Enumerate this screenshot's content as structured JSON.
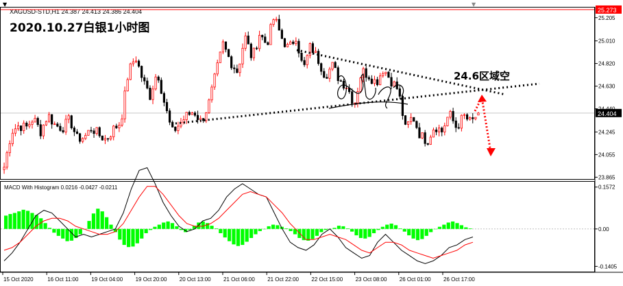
{
  "header": {
    "dropdown_glyph": "▼",
    "symbol_info": "XAGUSD-STD,H1  24.387 24.413 24.386 24.404",
    "corner_glyph": "▼"
  },
  "annotation": {
    "title": "2020.10.27白银1小时图",
    "zone_label": "24.6区域空"
  },
  "colors": {
    "up_candle": "#ff0000",
    "down_candle": "#000000",
    "price_marker": "#ff0000",
    "ask_line": "#ff0000",
    "histogram": "#00ff00",
    "macd_line": "#000000",
    "signal_line": "#ff0000",
    "arrow": "#ff0000"
  },
  "chart_data": [
    {
      "type": "candlestick",
      "symbol": "XAGUSD-STD",
      "timeframe": "H1",
      "ohlc_now": {
        "open": 24.387,
        "high": 24.413,
        "low": 24.386,
        "close": 24.404
      },
      "y_ticks": [
        "25.273",
        "25.205",
        "25.010",
        "24.820",
        "24.630",
        "24.440",
        "24.404",
        "24.245",
        "24.055",
        "23.865"
      ],
      "y_tick_values": [
        25.273,
        25.205,
        25.01,
        24.82,
        24.63,
        24.44,
        24.404,
        24.245,
        24.055,
        23.865
      ],
      "ylim": [
        23.85,
        25.29
      ],
      "current_price": "24.404",
      "ask_price": "25.273",
      "x_ticks": [
        "15 Oct 2020",
        "16 Oct 11:00",
        "19 Oct 04:00",
        "19 Oct 20:00",
        "20 Oct 13:00",
        "21 Oct 06:00",
        "21 Oct 22:00",
        "22 Oct 15:00",
        "23 Oct 08:00",
        "26 Oct 01:00",
        "26 Oct 17:00"
      ],
      "close_path": [
        23.95,
        24.25,
        24.3,
        24.28,
        24.36,
        24.25,
        24.39,
        24.3,
        24.28,
        24.35,
        24.19,
        24.2,
        24.28,
        24.22,
        24.18,
        24.27,
        24.33,
        24.74,
        24.88,
        24.68,
        24.55,
        24.76,
        24.48,
        24.24,
        24.31,
        24.38,
        24.42,
        24.33,
        24.47,
        24.73,
        24.98,
        24.84,
        24.75,
        25.05,
        24.86,
        25.07,
        24.98,
        25.21,
        25.04,
        24.94,
        25.05,
        24.76,
        24.97,
        24.86,
        24.72,
        24.8,
        24.68,
        24.63,
        24.48,
        24.76,
        24.72,
        24.66,
        24.78,
        24.68,
        24.6,
        24.27,
        24.38,
        24.22,
        24.17,
        24.3,
        24.25,
        24.4,
        24.28,
        24.38,
        24.32,
        24.404
      ],
      "trendlines": [
        {
          "type": "dotted",
          "from": [
            "19 Oct 20:00",
            24.36
          ],
          "to": [
            "26 Oct 17:00",
            24.67
          ]
        },
        {
          "type": "dotted",
          "from": [
            "21 Oct 22:00",
            24.97
          ],
          "to": [
            "26 Oct 17:00",
            24.58
          ]
        }
      ],
      "annotations": [
        "2020.10.27白银1小时图",
        "24.6区域空"
      ]
    },
    {
      "type": "line",
      "title": "MACD With Histogram 0.0216 -0.0427 -0.0211",
      "series": [
        {
          "name": "Histogram",
          "style": "histogram",
          "values": [
            0.05,
            0.056,
            0.06,
            0.066,
            0.072,
            0.068,
            0.06,
            0.052,
            0.04,
            0.022,
            0.004,
            -0.014,
            -0.026,
            -0.036,
            -0.046,
            -0.044,
            -0.034,
            -0.02,
            0.0,
            0.03,
            0.058,
            0.076,
            0.066,
            0.044,
            0.016,
            -0.012,
            -0.04,
            -0.06,
            -0.068,
            -0.066,
            -0.054,
            -0.036,
            -0.016,
            -0.004,
            0.008,
            0.016,
            0.024,
            0.028,
            0.022,
            0.01,
            -0.004,
            -0.012,
            -0.004,
            0.012,
            0.024,
            0.028,
            0.022,
            0.012,
            0.002,
            -0.016,
            -0.032,
            -0.046,
            -0.058,
            -0.064,
            -0.06,
            -0.048,
            -0.034,
            -0.02,
            -0.008,
            0.0,
            0.01,
            0.016,
            0.014,
            0.008,
            0.002,
            -0.008,
            -0.02,
            -0.034,
            -0.042,
            -0.044,
            -0.038,
            -0.026,
            -0.012,
            -0.004,
            0.0,
            0.004,
            0.012,
            0.01,
            0.002,
            -0.01,
            -0.024,
            -0.034,
            -0.036,
            -0.03,
            -0.016,
            -0.004,
            0.008,
            0.016,
            0.02,
            0.014,
            0.002,
            -0.01,
            -0.024,
            -0.036,
            -0.042,
            -0.038,
            -0.026,
            -0.012,
            0.0,
            0.008,
            0.016,
            0.024,
            0.028,
            0.022,
            0.014,
            0.006,
            0.002
          ]
        },
        {
          "name": "MACD",
          "values": [
            -0.12,
            -0.09,
            -0.05,
            0.0,
            0.05,
            0.07,
            0.06,
            0.03,
            0.0,
            -0.03,
            -0.02,
            -0.03,
            -0.02,
            -0.01,
            0.0,
            0.06,
            0.15,
            0.22,
            0.23,
            0.17,
            0.1,
            0.05,
            0.01,
            -0.01,
            0.0,
            0.03,
            0.04,
            0.07,
            0.12,
            0.15,
            0.17,
            0.15,
            0.13,
            0.12,
            0.06,
            0.0,
            -0.05,
            -0.07,
            -0.08,
            -0.06,
            -0.02,
            0.0,
            -0.03,
            -0.07,
            -0.09,
            -0.11,
            -0.1,
            -0.05,
            -0.02,
            -0.05,
            -0.08,
            -0.1,
            -0.12,
            -0.13,
            -0.12,
            -0.1,
            -0.07,
            -0.06,
            -0.04,
            -0.03
          ]
        },
        {
          "name": "Signal",
          "values": [
            -0.08,
            -0.07,
            -0.05,
            -0.02,
            0.01,
            0.03,
            0.04,
            0.04,
            0.03,
            0.01,
            0.0,
            -0.01,
            -0.02,
            -0.02,
            -0.01,
            0.02,
            0.07,
            0.12,
            0.16,
            0.16,
            0.13,
            0.09,
            0.05,
            0.02,
            0.01,
            0.01,
            0.02,
            0.04,
            0.07,
            0.1,
            0.13,
            0.14,
            0.13,
            0.12,
            0.09,
            0.06,
            0.02,
            -0.01,
            -0.04,
            -0.04,
            -0.03,
            -0.02,
            -0.03,
            -0.04,
            -0.06,
            -0.08,
            -0.09,
            -0.07,
            -0.05,
            -0.05,
            -0.06,
            -0.08,
            -0.09,
            -0.1,
            -0.11,
            -0.1,
            -0.09,
            -0.08,
            -0.06,
            -0.05
          ]
        }
      ],
      "y_ticks": [
        "0.1572",
        "0.00",
        "-0.1405"
      ],
      "y_tick_values": [
        0.1572,
        0.0,
        -0.1405
      ],
      "ylim": [
        -0.155,
        0.172
      ]
    }
  ]
}
